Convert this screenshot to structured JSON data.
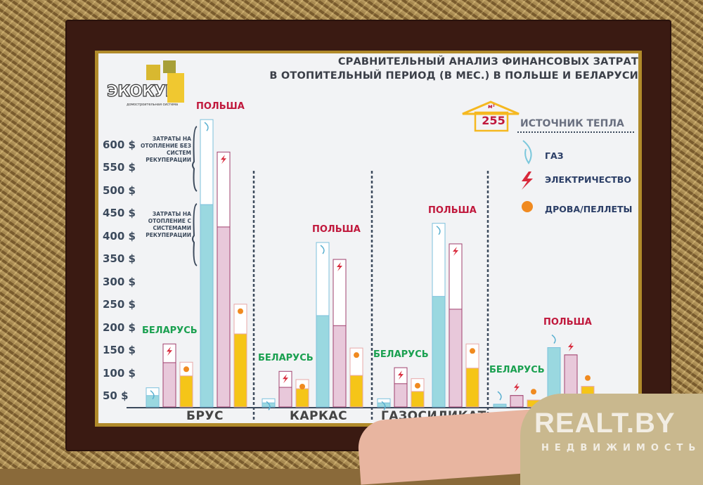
{
  "poster": {
    "title_line1": "СРАВНИТЕЛЬНЫЙ АНАЛИЗ ФИНАНСОВЫХ ЗАТРАТ",
    "title_line2": "В ОТОПИТЕЛЬНЫЙ ПЕРИОД (В МЕС.) В ПОЛЬШЕ И БЕЛАРУСИ",
    "logo_text": "ЭКОКУБ",
    "logo_subtitle": "домостроительная система",
    "area_value": "255",
    "area_unit": "м²",
    "note_without": "ЗАТРАТЫ НА ОТОПЛЕНИЕ БЕЗ СИСТЕМ РЕКУПЕРАЦИИ",
    "note_with": "ЗАТРАТЫ НА ОТОПЛЕНИЕ С СИСТЕМАМИ РЕКУПЕРАЦИИ",
    "legend_title": "ИСТОЧНИК ТЕПЛА",
    "legend": [
      {
        "label": "ГАЗ",
        "icon": "gas-flame-icon",
        "color": "#7cc8dc"
      },
      {
        "label": "ЭЛЕКТРИЧЕСТВО",
        "icon": "lightning-icon",
        "color": "#d8283a"
      },
      {
        "label": "ДРОВА/ПЕЛЛЕТЫ",
        "icon": "fire-icon",
        "color": "#f5c518"
      }
    ]
  },
  "chart_data": {
    "type": "bar",
    "ylabel": "",
    "ylim": [
      0,
      650
    ],
    "yticks": [
      "50 $",
      "100 $",
      "150 $",
      "200 $",
      "250 $",
      "300 $",
      "350 $",
      "400 $",
      "450 $",
      "500 $",
      "550 $",
      "600 $"
    ],
    "series_note": "total = cost without recuperation, recup = cost with recuperation",
    "groups": [
      {
        "category": "БРУС",
        "countries": [
          {
            "name": "БЕЛАРУСЬ",
            "bars": [
              {
                "source": "gas",
                "total": 42,
                "recup": 25
              },
              {
                "source": "electricity",
                "total": 138,
                "recup": 97
              },
              {
                "source": "wood",
                "total": 98,
                "recup": 68
              }
            ]
          },
          {
            "name": "ПОЛЬША",
            "bars": [
              {
                "source": "gas",
                "total": 629,
                "recup": 443
              },
              {
                "source": "electricity",
                "total": 558,
                "recup": 394
              },
              {
                "source": "wood",
                "total": 225,
                "recup": 160
              }
            ]
          }
        ]
      },
      {
        "category": "КАРКАС",
        "countries": [
          {
            "name": "БЕЛАРУСЬ",
            "bars": [
              {
                "source": "gas",
                "total": 18,
                "recup": 9
              },
              {
                "source": "electricity",
                "total": 78,
                "recup": 43
              },
              {
                "source": "wood",
                "total": 60,
                "recup": 40
              }
            ]
          },
          {
            "name": "ПОЛЬША",
            "bars": [
              {
                "source": "gas",
                "total": 360,
                "recup": 200
              },
              {
                "source": "electricity",
                "total": 323,
                "recup": 178
              },
              {
                "source": "wood",
                "total": 129,
                "recup": 69
              }
            ]
          }
        ]
      },
      {
        "category": "ГАЗОСИЛИКАТ",
        "countries": [
          {
            "name": "БЕЛАРУСЬ",
            "bars": [
              {
                "source": "gas",
                "total": 18,
                "recup": 9
              },
              {
                "source": "electricity",
                "total": 86,
                "recup": 51
              },
              {
                "source": "wood",
                "total": 62,
                "recup": 34
              }
            ]
          },
          {
            "name": "ПОЛЬША",
            "bars": [
              {
                "source": "gas",
                "total": 402,
                "recup": 242
              },
              {
                "source": "electricity",
                "total": 357,
                "recup": 214
              },
              {
                "source": "wood",
                "total": 138,
                "recup": 85
              }
            ]
          }
        ]
      },
      {
        "category": "",
        "countries": [
          {
            "name": "БЕЛАРУСЬ",
            "bars": [
              {
                "source": "gas",
                "total": 6,
                "recup": 6
              },
              {
                "source": "electricity",
                "total": 25,
                "recup": 25
              },
              {
                "source": "wood",
                "total": 15,
                "recup": 15
              }
            ]
          },
          {
            "name": "ПОЛЬША",
            "bars": [
              {
                "source": "gas",
                "total": 130,
                "recup": 130
              },
              {
                "source": "electricity",
                "total": 114,
                "recup": 114
              },
              {
                "source": "wood",
                "total": 45,
                "recup": 45
              }
            ]
          }
        ]
      }
    ]
  },
  "watermark": {
    "brand": "REALT.BY",
    "sub": "НЕДВИЖИМОСТЬ"
  }
}
